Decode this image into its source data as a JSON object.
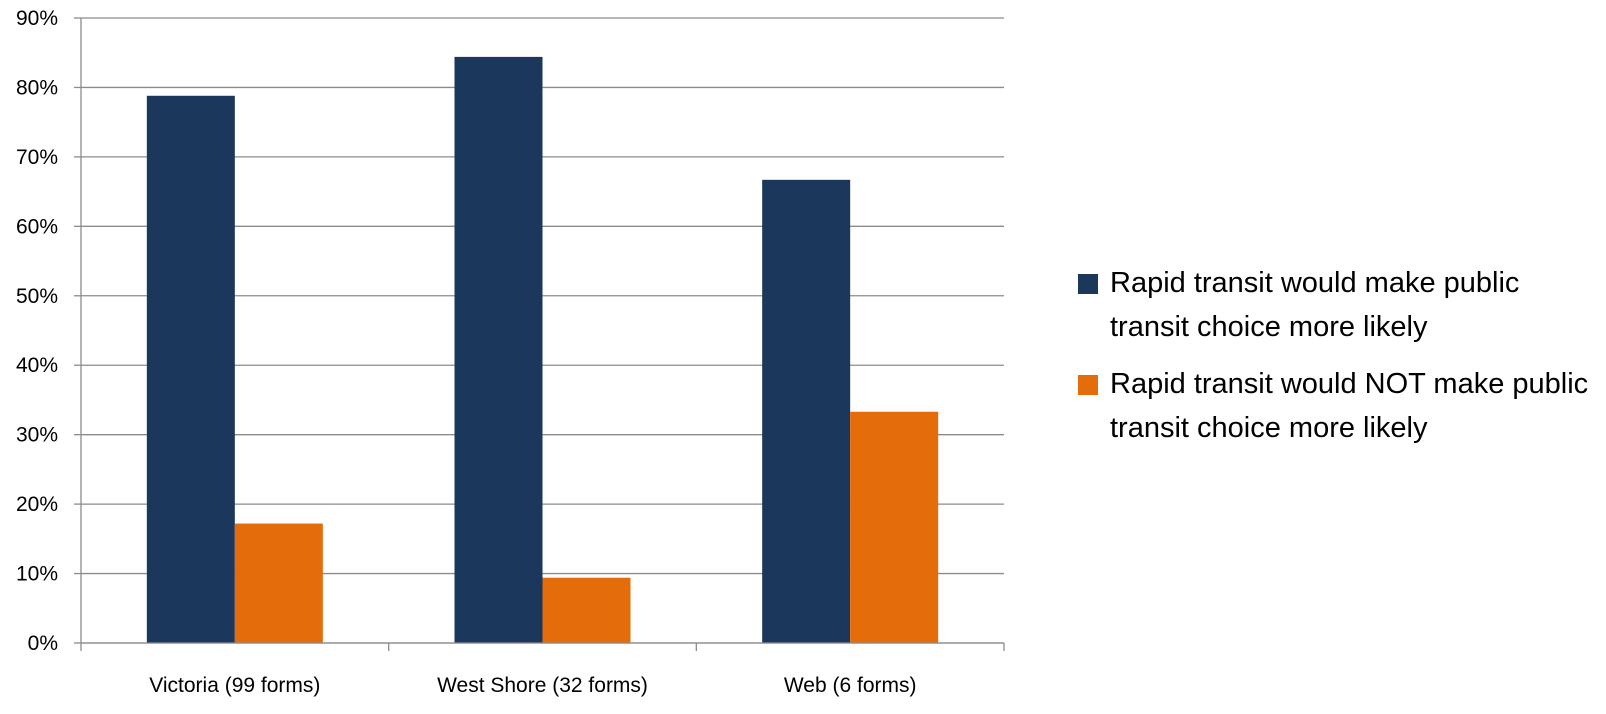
{
  "chart_data": {
    "type": "bar",
    "categories": [
      "Victoria (99 forms)",
      "West Shore (32 forms)",
      "Web (6 forms)"
    ],
    "series": [
      {
        "name": "Rapid transit would make public transit choice more likely",
        "color": "#1b375c",
        "values": [
          78.8,
          84.4,
          66.7
        ]
      },
      {
        "name": "Rapid transit would NOT make public transit choice more likely",
        "color": "#e46c0a",
        "values": [
          17.2,
          9.4,
          33.3
        ]
      }
    ],
    "y_ticks": [
      "0%",
      "10%",
      "20%",
      "30%",
      "40%",
      "50%",
      "60%",
      "70%",
      "80%",
      "90%"
    ],
    "ylim": [
      0,
      90
    ],
    "grid": true,
    "legend_position": "right"
  }
}
